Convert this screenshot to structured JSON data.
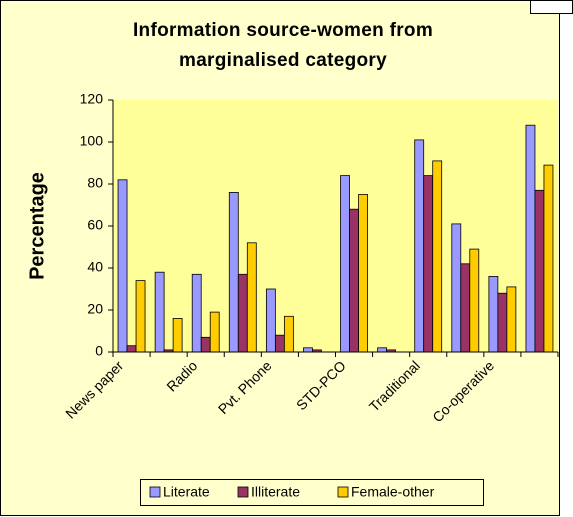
{
  "chart_data": {
    "type": "bar",
    "title": "Information source-women from marginalised category",
    "y_label": "Percentage",
    "categories": [
      "News paper",
      null,
      "Radio",
      null,
      "Pvt. Phone",
      null,
      "STD-PCO",
      null,
      "Traditional",
      null,
      "Co-operative",
      null
    ],
    "series": [
      {
        "name": "Literate",
        "color": "#9999ff",
        "values": [
          82,
          38,
          37,
          76,
          30,
          2,
          84,
          2,
          101,
          61,
          36,
          108
        ]
      },
      {
        "name": "Illiterate",
        "color": "#993366",
        "values": [
          3,
          1,
          7,
          37,
          8,
          1,
          68,
          1,
          84,
          42,
          28,
          77
        ]
      },
      {
        "name": "Female-other",
        "color": "#ffcc00",
        "values": [
          34,
          16,
          19,
          52,
          17,
          0,
          75,
          0,
          91,
          49,
          31,
          89
        ]
      }
    ],
    "ylim": [
      0,
      120
    ],
    "yticks": [
      0,
      20,
      40,
      60,
      80,
      100,
      120
    ],
    "grid": false,
    "legend": "bottom"
  }
}
